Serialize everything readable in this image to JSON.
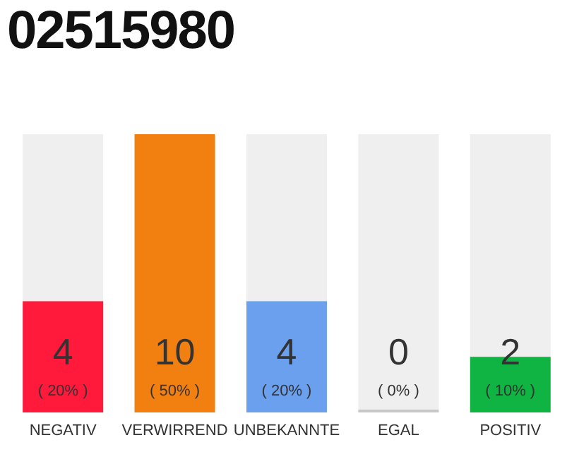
{
  "chart_data": {
    "type": "bar",
    "title": "02515980",
    "categories": [
      "NEGATIV",
      "VERWIRREND",
      "UNBEKANNTE",
      "EGAL",
      "POSITIV"
    ],
    "values": [
      4,
      10,
      4,
      0,
      2
    ],
    "colors": [
      "#ff1a3c",
      "#f28010",
      "#6aa0ee",
      "#c8c8c8",
      "#10b442"
    ],
    "value_labels": [
      "4\n( 20% )",
      "10\n( 50% )",
      "4\n( 20% )",
      "0\n( 0% )",
      "2\n( 10% )"
    ],
    "ylim": [
      0,
      10
    ],
    "tick_labels": "x",
    "grid": false,
    "legend": false
  }
}
